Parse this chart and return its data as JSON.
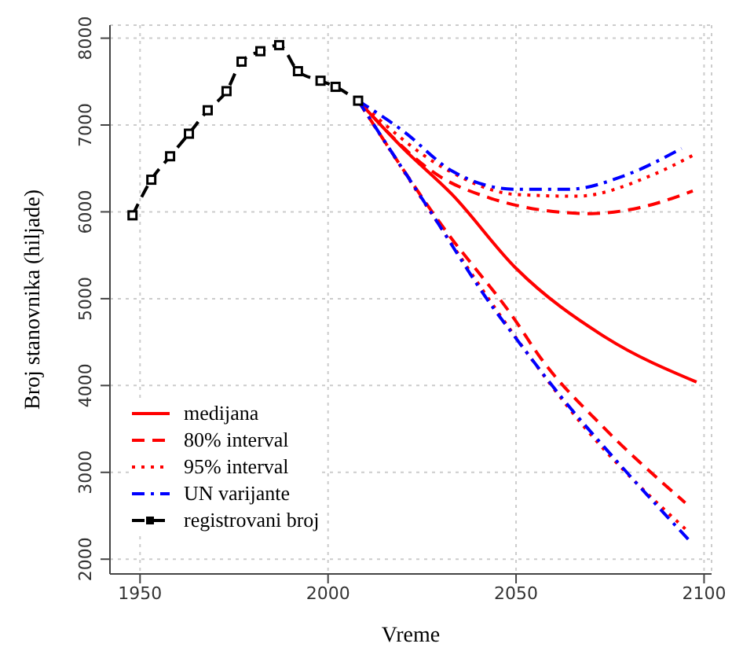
{
  "chart_data": {
    "type": "line",
    "xlabel": "Vreme",
    "ylabel": "Broj stanovnika (hiljade)",
    "xlim": [
      1942,
      2102
    ],
    "xticks": [
      1950,
      2000,
      2050,
      2100
    ],
    "ylim": [
      1830,
      8150
    ],
    "yticks": [
      2000,
      3000,
      4000,
      5000,
      6000,
      7000,
      8000
    ],
    "grid": true,
    "legend": "bottom left",
    "series": [
      {
        "name": "medijana",
        "color": "#ff0000",
        "line_style": "solid",
        "marker": "none",
        "x": [
          2008,
          2020,
          2033,
          2050,
          2074,
          2098
        ],
        "values": [
          7280,
          6730,
          6200,
          5350,
          4550,
          4040
        ]
      },
      {
        "name": "80% interval",
        "color": "#ff0000",
        "line_style": "dashed",
        "marker": "none",
        "x": [
          2008,
          2030,
          2043,
          2057,
          2070,
          2083,
          2097
        ],
        "values": [
          7280,
          6400,
          6160,
          6020,
          5980,
          6050,
          6240
        ]
      },
      {
        "color": "#ff0000",
        "line_style": "dashed",
        "marker": "none",
        "x": [
          2008,
          2031,
          2049,
          2057,
          2073,
          2095
        ],
        "values": [
          7280,
          5800,
          4800,
          4290,
          3530,
          2650
        ]
      },
      {
        "name": "95% interval",
        "color": "#ff0000",
        "line_style": "dotted",
        "marker": "none",
        "x": [
          2008,
          2031,
          2050,
          2066,
          2086,
          2097
        ],
        "values": [
          7280,
          6500,
          6200,
          6180,
          6420,
          6650
        ]
      },
      {
        "color": "#ff0000",
        "line_style": "dotted",
        "marker": "none",
        "x": [
          2008,
          2028,
          2050,
          2068,
          2096
        ],
        "values": [
          7280,
          5950,
          4550,
          3530,
          2310
        ]
      },
      {
        "name": "UN varijante",
        "color": "#0000ff",
        "line_style": "dashdot",
        "marker": "none",
        "x": [
          2008,
          2020,
          2033,
          2050,
          2064,
          2079,
          2094
        ],
        "values": [
          7280,
          6930,
          6470,
          6260,
          6260,
          6420,
          6730
        ]
      },
      {
        "color": "#0000ff",
        "line_style": "dashdot",
        "marker": "none",
        "x": [
          2008,
          2027,
          2044,
          2049,
          2062,
          2078,
          2096
        ],
        "values": [
          7280,
          6020,
          4890,
          4600,
          3870,
          3070,
          2220
        ]
      },
      {
        "name": "registrovani broj",
        "color": "#000000",
        "line_style": "dashed",
        "marker": "square",
        "x": [
          1948,
          1953,
          1958,
          1963,
          1968,
          1973,
          1977,
          1982,
          1987,
          1992,
          1998,
          2002,
          2008
        ],
        "values": [
          5960,
          6370,
          6640,
          6900,
          7170,
          7390,
          7730,
          7850,
          7920,
          7620,
          7510,
          7440,
          7280
        ]
      }
    ]
  }
}
